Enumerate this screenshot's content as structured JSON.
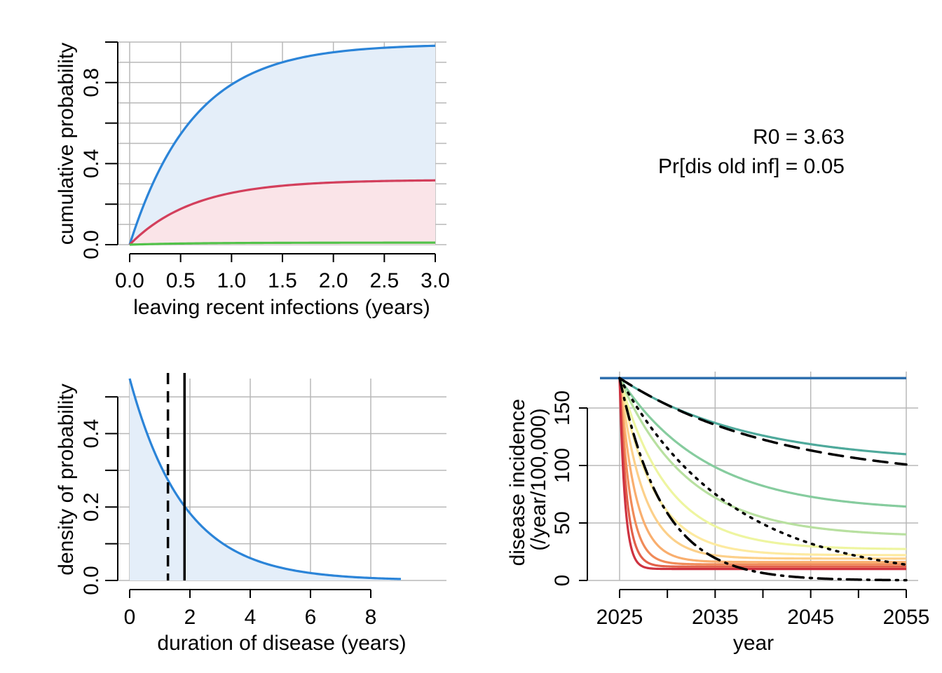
{
  "chart_data": [
    {
      "type": "area",
      "panel": "top-left",
      "xlabel": "leaving recent infections (years)",
      "ylabel": "cumulative probability",
      "xlim": [
        0,
        3
      ],
      "ylim": [
        0,
        1
      ],
      "xticks": [
        "0.0",
        "0.5",
        "1.0",
        "1.5",
        "2.0",
        "2.5",
        "3.0"
      ],
      "xtick_values": [
        0,
        0.5,
        1,
        1.5,
        2,
        2.5,
        3
      ],
      "yticks": [
        "0.0",
        "0.4",
        "0.8"
      ],
      "ytick_values": [
        0,
        0.4,
        0.8
      ],
      "yminor_values": [
        0.2,
        0.6,
        1.0
      ],
      "grid": true,
      "series": [
        {
          "color": "#2b84d8",
          "fill": "#e4eef9",
          "plateau": 0.99,
          "rate": 1.6
        },
        {
          "color": "#d33f5c",
          "fill": "#fae4e8",
          "plateau": 0.32,
          "rate": 1.6
        },
        {
          "color": "#52c24a",
          "fill": "none",
          "plateau": 0.01,
          "rate": 1.6
        }
      ]
    },
    {
      "type": "text",
      "panel": "top-right",
      "lines": [
        "R0 = 3.63",
        "Pr[dis old inf] = 0.05"
      ]
    },
    {
      "type": "area",
      "panel": "bottom-left",
      "xlabel": "duration of disease (years)",
      "ylabel": "density of probability",
      "xlim": [
        0,
        9
      ],
      "ylim": [
        0,
        0.55
      ],
      "xticks": [
        "0",
        "2",
        "4",
        "6",
        "8"
      ],
      "xtick_values": [
        0,
        2,
        4,
        6,
        8
      ],
      "yticks": [
        "0.0",
        "0.2",
        "0.4"
      ],
      "ytick_values": [
        0,
        0.2,
        0.4
      ],
      "yminor_values": [
        0.1,
        0.3,
        0.5
      ],
      "grid": true,
      "density": {
        "color": "#2b84d8",
        "fill": "#e4eef9",
        "y0": 0.55,
        "rate": 0.55
      },
      "vlines": [
        {
          "x": 1.27,
          "style": "dashed",
          "color": "#000000"
        },
        {
          "x": 1.82,
          "style": "solid",
          "color": "#000000"
        }
      ]
    },
    {
      "type": "line",
      "panel": "bottom-right",
      "xlabel": "year",
      "ylabel": "disease incidence\n(/year/100,000)",
      "xlim": [
        2025,
        2055
      ],
      "ylim": [
        0,
        175
      ],
      "xticks": [
        "2025",
        "2035",
        "2045",
        "2055"
      ],
      "xtick_values": [
        2025,
        2035,
        2045,
        2055
      ],
      "xminor_values": [
        2030,
        2040,
        2050
      ],
      "yticks": [
        "0",
        "50",
        "100",
        "150"
      ],
      "ytick_values": [
        0,
        50,
        100,
        150
      ],
      "grid": true,
      "baseline": {
        "value": 176,
        "color": "#2e6fae"
      },
      "series": [
        {
          "color": "#4ea99b",
          "final": 102,
          "rate": 0.075
        },
        {
          "color": "#86cc9e",
          "final": 60,
          "rate": 0.11
        },
        {
          "color": "#b8e0a0",
          "final": 38,
          "rate": 0.14
        },
        {
          "color": "#eef5a0",
          "final": 27,
          "rate": 0.2
        },
        {
          "color": "#fdeaa0",
          "final": 22,
          "rate": 0.28
        },
        {
          "color": "#fcd08a",
          "final": 19,
          "rate": 0.4
        },
        {
          "color": "#f9ae6e",
          "final": 16,
          "rate": 0.6
        },
        {
          "color": "#f08a58",
          "final": 14,
          "rate": 0.9
        },
        {
          "color": "#e2604a",
          "final": 12,
          "rate": 1.3
        },
        {
          "color": "#ce3240",
          "final": 10,
          "rate": 1.8
        }
      ],
      "reference_lines": [
        {
          "style": "dashed",
          "final": 86,
          "rate": 0.06,
          "to": 96
        },
        {
          "style": "dotted",
          "final": 0,
          "rate": 0.085
        },
        {
          "style": "dashdot",
          "final": 0,
          "rate": 0.22
        }
      ]
    }
  ]
}
